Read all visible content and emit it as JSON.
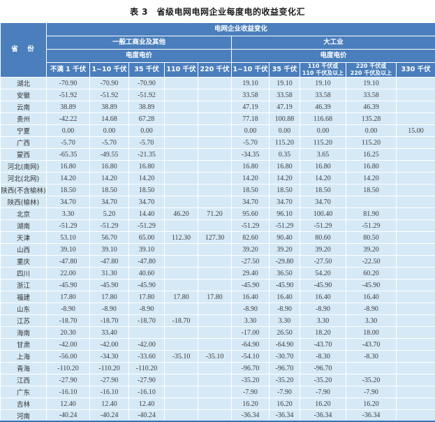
{
  "title": "表 3　省级电网电网企业每度电的收益变化汇",
  "colors": {
    "header_bg": "#4a7ebc",
    "row_bg": "#d6e9f6",
    "bottom_border": "#3874b4",
    "header_text": "#ffffff",
    "body_text": "#3d3d3d"
  },
  "table": {
    "corner_label": "省　份",
    "header": {
      "group": "电网企业收益变化",
      "general": {
        "label": "一般工商业及其他",
        "price": "电度电价",
        "sub": [
          "不满 1 千伏",
          "1~10 千伏",
          "35 千伏",
          "110 千伏",
          "220 千伏"
        ]
      },
      "industry": {
        "label": "大工业",
        "price": "电度电价",
        "sub": [
          "1~10 千伏",
          "35 千伏",
          "110 千伏或\n110 千伏及以上",
          "220 千伏或\n220 千伏及以上",
          "330 千伏"
        ]
      }
    },
    "rows": [
      {
        "province": "湖北",
        "values": [
          "-70.90",
          "-70.90",
          "-70.90",
          "",
          "",
          "19.10",
          "19.10",
          "19.10",
          "19.10",
          ""
        ]
      },
      {
        "province": "安徽",
        "values": [
          "-51.92",
          "-51.92",
          "-51.92",
          "",
          "",
          "33.58",
          "33.58",
          "33.58",
          "33.58",
          ""
        ]
      },
      {
        "province": "云南",
        "values": [
          "38.89",
          "38.89",
          "38.89",
          "",
          "",
          "47.19",
          "47.19",
          "46.39",
          "46.39",
          ""
        ]
      },
      {
        "province": "贵州",
        "values": [
          "-42.22",
          "14.68",
          "67.28",
          "",
          "",
          "77.18",
          "100.88",
          "116.68",
          "135.28",
          ""
        ]
      },
      {
        "province": "宁夏",
        "values": [
          "0.00",
          "0.00",
          "0.00",
          "",
          "",
          "0.00",
          "0.00",
          "0.00",
          "0.00",
          "15.00"
        ]
      },
      {
        "province": "广西",
        "values": [
          "-5.70",
          "-5.70",
          "-5.70",
          "",
          "",
          "-5.70",
          "115.20",
          "115.20",
          "115.20",
          ""
        ]
      },
      {
        "province": "蒙西",
        "values": [
          "-65.35",
          "-49.55",
          "-21.35",
          "",
          "",
          "-34.35",
          "0.35",
          "3.65",
          "16.25",
          ""
        ]
      },
      {
        "province": "河北(南网)",
        "values": [
          "16.80",
          "16.80",
          "16.80",
          "",
          "",
          "16.80",
          "16.80",
          "16.80",
          "16.80",
          ""
        ]
      },
      {
        "province": "河北(北网)",
        "values": [
          "14.20",
          "14.20",
          "14.20",
          "",
          "",
          "14.20",
          "14.20",
          "14.20",
          "14.20",
          ""
        ]
      },
      {
        "province": "陕西(不含榆林)",
        "values": [
          "18.50",
          "18.50",
          "18.50",
          "",
          "",
          "18.50",
          "18.50",
          "18.50",
          "18.50",
          ""
        ]
      },
      {
        "province": "陕西(榆林)",
        "values": [
          "34.70",
          "34.70",
          "34.70",
          "",
          "",
          "34.70",
          "34.70",
          "34.70",
          "",
          ""
        ]
      },
      {
        "province": "北京",
        "values": [
          "3.30",
          "5.20",
          "14.40",
          "46.20",
          "71.20",
          "95.60",
          "96.10",
          "100.40",
          "81.90",
          ""
        ]
      },
      {
        "province": "湖南",
        "values": [
          "-51.29",
          "-51.29",
          "-51.29",
          "",
          "",
          "-51.29",
          "-51.29",
          "-51.29",
          "-51.29",
          ""
        ]
      },
      {
        "province": "天津",
        "values": [
          "53.10",
          "56.70",
          "65.00",
          "112.30",
          "127.30",
          "82.60",
          "90.40",
          "80.60",
          "80.50",
          ""
        ]
      },
      {
        "province": "山西",
        "values": [
          "39.10",
          "39.10",
          "39.10",
          "",
          "",
          "39.20",
          "39.20",
          "39.20",
          "39.20",
          ""
        ]
      },
      {
        "province": "重庆",
        "values": [
          "-47.80",
          "-47.80",
          "-47.80",
          "",
          "",
          "-27.50",
          "-29.80",
          "-27.50",
          "-22.50",
          ""
        ]
      },
      {
        "province": "四川",
        "values": [
          "22.00",
          "31.30",
          "40.60",
          "",
          "",
          "29.40",
          "36.50",
          "54.20",
          "60.20",
          ""
        ]
      },
      {
        "province": "浙江",
        "values": [
          "-45.90",
          "-45.90",
          "-45.90",
          "",
          "",
          "-45.90",
          "-45.90",
          "-45.90",
          "-45.90",
          ""
        ]
      },
      {
        "province": "福建",
        "values": [
          "17.80",
          "17.80",
          "17.80",
          "17.80",
          "17.80",
          "16.40",
          "16.40",
          "16.40",
          "16.40",
          ""
        ]
      },
      {
        "province": "山东",
        "values": [
          "-8.90",
          "-8.90",
          "-8.90",
          "",
          "",
          "-8.90",
          "-8.90",
          "-8.90",
          "-8.90",
          ""
        ]
      },
      {
        "province": "江苏",
        "values": [
          "-18.70",
          "-18.70",
          "-18.70",
          "-18.70",
          "",
          "3.30",
          "3.30",
          "3.30",
          "3.30",
          ""
        ]
      },
      {
        "province": "海南",
        "values": [
          "20.30",
          "33.40",
          "",
          "",
          "",
          "-17.00",
          "26.50",
          "18.20",
          "18.00",
          ""
        ]
      },
      {
        "province": "甘肃",
        "values": [
          "-42.00",
          "-42.00",
          "-42.00",
          "",
          "",
          "-64.90",
          "-64.90",
          "-43.70",
          "-43.70",
          ""
        ]
      },
      {
        "province": "上海",
        "values": [
          "-56.00",
          "-34.30",
          "-33.60",
          "-35.10",
          "-35.10",
          "-54.10",
          "-30.70",
          "-8.30",
          "-8.30",
          ""
        ]
      },
      {
        "province": "青海",
        "values": [
          "-110.20",
          "-110.20",
          "-110.20",
          "",
          "",
          "-96.70",
          "-96.70",
          "-96.70",
          "",
          ""
        ]
      },
      {
        "province": "江西",
        "values": [
          "-27.90",
          "-27.90",
          "-27.90",
          "",
          "",
          "-35.20",
          "-35.20",
          "-35.20",
          "-35.20",
          ""
        ]
      },
      {
        "province": "广东",
        "values": [
          "-16.10",
          "-16.10",
          "-16.10",
          "",
          "",
          "-7.90",
          "-7.90",
          "-7.90",
          "-7.90",
          ""
        ]
      },
      {
        "province": "吉林",
        "values": [
          "12.40",
          "12.40",
          "12.40",
          "",
          "",
          "16.20",
          "16.20",
          "16.20",
          "16.20",
          ""
        ]
      },
      {
        "province": "河南",
        "values": [
          "-40.24",
          "-40.24",
          "-40.24",
          "",
          "",
          "-36.34",
          "-36.34",
          "-36.34",
          "-36.34",
          ""
        ]
      }
    ]
  }
}
